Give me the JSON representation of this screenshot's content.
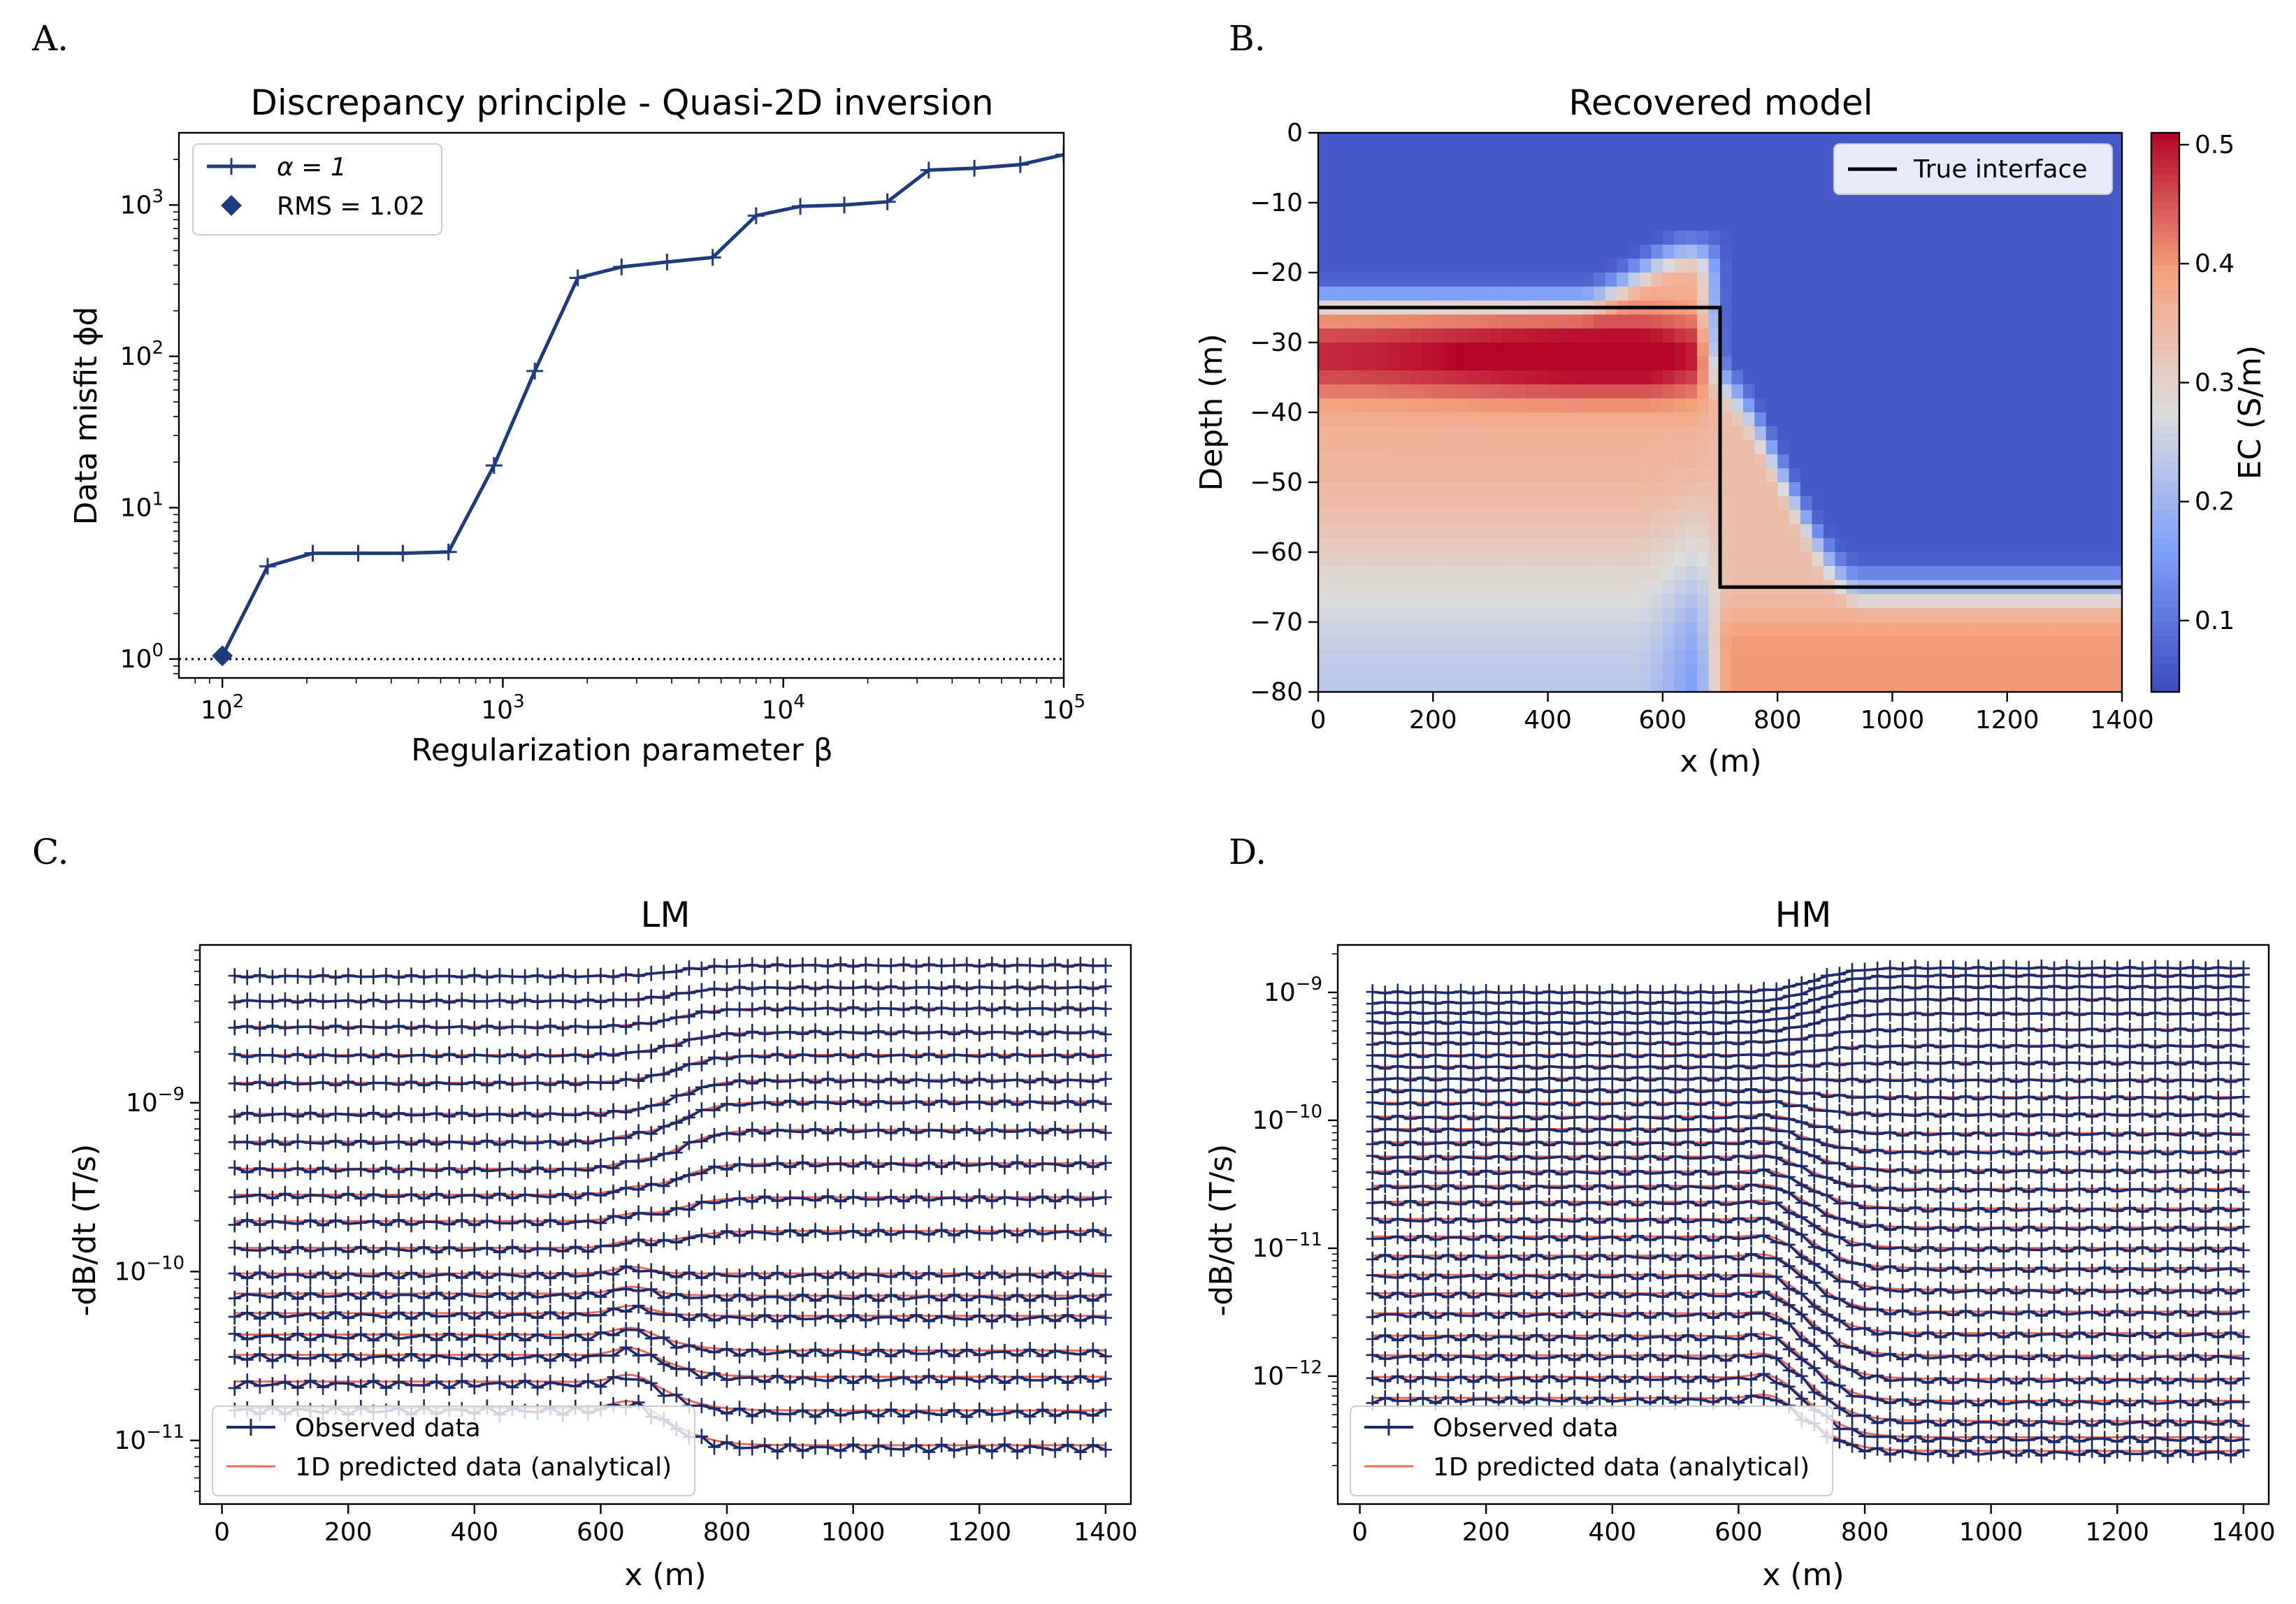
{
  "panel_letters": [
    "A.",
    "B.",
    "C.",
    "D."
  ],
  "chart_data": [
    {
      "panel": "A",
      "type": "line",
      "title": "Discrepancy principle - Quasi-2D inversion",
      "xlabel": "Regularization parameter β",
      "ylabel": "Data misfit ϕd",
      "xscale": "log",
      "yscale": "log",
      "xlim": [
        70,
        100000
      ],
      "ylim": [
        0.75,
        3000
      ],
      "x_ticks": [
        {
          "v": 100,
          "base": "10",
          "exp": "2"
        },
        {
          "v": 1000,
          "base": "10",
          "exp": "3"
        },
        {
          "v": 10000,
          "base": "10",
          "exp": "4"
        },
        {
          "v": 100000,
          "base": "10",
          "exp": "5"
        }
      ],
      "y_ticks": [
        {
          "v": 1,
          "base": "10",
          "exp": "0"
        },
        {
          "v": 10,
          "base": "10",
          "exp": "1"
        },
        {
          "v": 100,
          "base": "10",
          "exp": "2"
        },
        {
          "v": 1000,
          "base": "10",
          "exp": "3"
        }
      ],
      "series": [
        {
          "name": "α = 1",
          "color": "#1f3a7d",
          "x": [
            100,
            145,
            210,
            305,
            440,
            640,
            930,
            1300,
            1850,
            2650,
            3850,
            5600,
            8000,
            11500,
            16500,
            23500,
            33000,
            48000,
            70000,
            100000
          ],
          "y": [
            1.05,
            4.1,
            5.0,
            5.0,
            5.0,
            5.1,
            19,
            80,
            330,
            390,
            420,
            450,
            850,
            980,
            1000,
            1050,
            1700,
            1750,
            1850,
            2150
          ]
        }
      ],
      "highlight": {
        "name": "RMS = 1.02",
        "x": 100,
        "y": 1.05,
        "color": "#1f3a7d"
      },
      "reference_line": {
        "y": 1,
        "style": "dotted"
      },
      "legend": [
        {
          "label": "α = 1",
          "kind": "line-plus"
        },
        {
          "label": "RMS = 1.02",
          "kind": "diamond"
        }
      ]
    },
    {
      "panel": "B",
      "type": "heatmap",
      "title": "Recovered model",
      "xlabel": "x (m)",
      "ylabel": "Depth (m)",
      "xlim": [
        0,
        1400
      ],
      "ylim": [
        -80,
        0
      ],
      "x_ticks": [
        0,
        200,
        400,
        600,
        800,
        1000,
        1200,
        1400
      ],
      "y_ticks": [
        0,
        -10,
        -20,
        -30,
        -40,
        -50,
        -60,
        -70,
        -80
      ],
      "y_tick_labels": [
        "0",
        "−10",
        "−20",
        "−30",
        "−40",
        "−50",
        "−60",
        "−70",
        "−80"
      ],
      "colorbar": {
        "label": "EC (S/m)",
        "range": [
          0.04,
          0.51
        ],
        "ticks": [
          0.1,
          0.2,
          0.3,
          0.4,
          0.5
        ],
        "tick_labels": [
          "0.1",
          "0.2",
          "0.3",
          "0.4",
          "0.5"
        ],
        "colormap": "coolwarm"
      },
      "true_interface": {
        "x": [
          0,
          700,
          700,
          1400
        ],
        "depth": [
          -25,
          -25,
          -65,
          -65
        ],
        "label": "True interface"
      },
      "model": {
        "background": 0.06,
        "left_block_value": 0.36,
        "left_peak_value": 0.5,
        "right_block_value": 0.4
      }
    },
    {
      "panel": "C",
      "type": "line",
      "title": "LM",
      "xlabel": "x (m)",
      "ylabel": "-dB/dt (T/s)",
      "yscale": "log",
      "xlim": [
        -35,
        1440
      ],
      "ylim": [
        4.2e-12,
        8.6e-09
      ],
      "x_ticks": [
        0,
        200,
        400,
        600,
        800,
        1000,
        1200,
        1400
      ],
      "y_ticks": [
        {
          "v": 1e-11,
          "base": "10",
          "exp": "−11"
        },
        {
          "v": 1e-10,
          "base": "10",
          "exp": "−10"
        },
        {
          "v": 1e-09,
          "base": "10",
          "exp": "−9"
        }
      ],
      "n_channels": 18,
      "curves_left": [
        5.6e-09,
        4e-09,
        2.8e-09,
        1.9e-09,
        1.3e-09,
        8.5e-10,
        5.8e-10,
        4e-10,
        2.8e-10,
        1.95e-10,
        1.35e-10,
        9.5e-11,
        7.2e-11,
        5.5e-11,
        4.1e-11,
        3.1e-11,
        2.15e-11,
        1.5e-11
      ],
      "curves_right": [
        6.5e-09,
        4.8e-09,
        3.6e-09,
        2.6e-09,
        1.9e-09,
        1.35e-09,
        1e-09,
        6.8e-10,
        4.3e-10,
        2.7e-10,
        1.7e-10,
        9.5e-11,
        7e-11,
        5.3e-11,
        3.3e-11,
        2.3e-11,
        1.45e-11,
        9e-12
      ],
      "observed_x_step": 20,
      "observed_x_range": [
        20,
        1400
      ],
      "legend": [
        {
          "label": "Observed data",
          "color": "#1a2a6c",
          "kind": "line-plus"
        },
        {
          "label": "1D predicted data (analytical)",
          "color": "#f26b50",
          "kind": "line"
        }
      ]
    },
    {
      "panel": "D",
      "type": "line",
      "title": "HM",
      "xlabel": "x (m)",
      "ylabel": "-dB/dt (T/s)",
      "yscale": "log",
      "xlim": [
        -35,
        1440
      ],
      "ylim": [
        1e-13,
        2.35e-09
      ],
      "x_ticks": [
        0,
        200,
        400,
        600,
        800,
        1000,
        1200,
        1400
      ],
      "y_ticks": [
        {
          "v": 1e-12,
          "base": "10",
          "exp": "−12"
        },
        {
          "v": 1e-11,
          "base": "10",
          "exp": "−11"
        },
        {
          "v": 1e-10,
          "base": "10",
          "exp": "−10"
        },
        {
          "v": 1e-09,
          "base": "10",
          "exp": "−9"
        }
      ],
      "n_channels": 28,
      "curves_left": [
        1e-09,
        8.3e-10,
        6.9e-10,
        5.8e-10,
        4.8e-10,
        4e-10,
        3.2e-10,
        2.6e-10,
        2.1e-10,
        1.7e-10,
        1.35e-10,
        1.05e-10,
        8.4e-11,
        6.6e-11,
        5.1e-11,
        3.9e-11,
        3e-11,
        2.25e-11,
        1.65e-11,
        1.2e-11,
        8.5e-12,
        6e-12,
        4.3e-12,
        3e-12,
        2e-12,
        1.4e-12,
        9.5e-13,
        6.5e-13
      ],
      "curves_right": [
        1.55e-09,
        1.35e-09,
        1.1e-09,
        8.8e-10,
        6.8e-10,
        5.1e-10,
        3.8e-10,
        2.8e-10,
        2.05e-10,
        1.5e-10,
        1.1e-10,
        7.8e-11,
        5.6e-11,
        4e-11,
        2.85e-11,
        2e-11,
        1.42e-11,
        9.8e-12,
        6.8e-12,
        4.6e-12,
        3.1e-12,
        2.1e-12,
        1.4e-12,
        9.2e-13,
        6.2e-13,
        4.3e-13,
        3.2e-13,
        2.5e-13
      ],
      "observed_x_step": 20,
      "observed_x_range": [
        20,
        1400
      ],
      "legend": [
        {
          "label": "Observed data",
          "color": "#1a2a6c",
          "kind": "line-plus"
        },
        {
          "label": "1D predicted data (analytical)",
          "color": "#f26b50",
          "kind": "line"
        }
      ]
    }
  ]
}
